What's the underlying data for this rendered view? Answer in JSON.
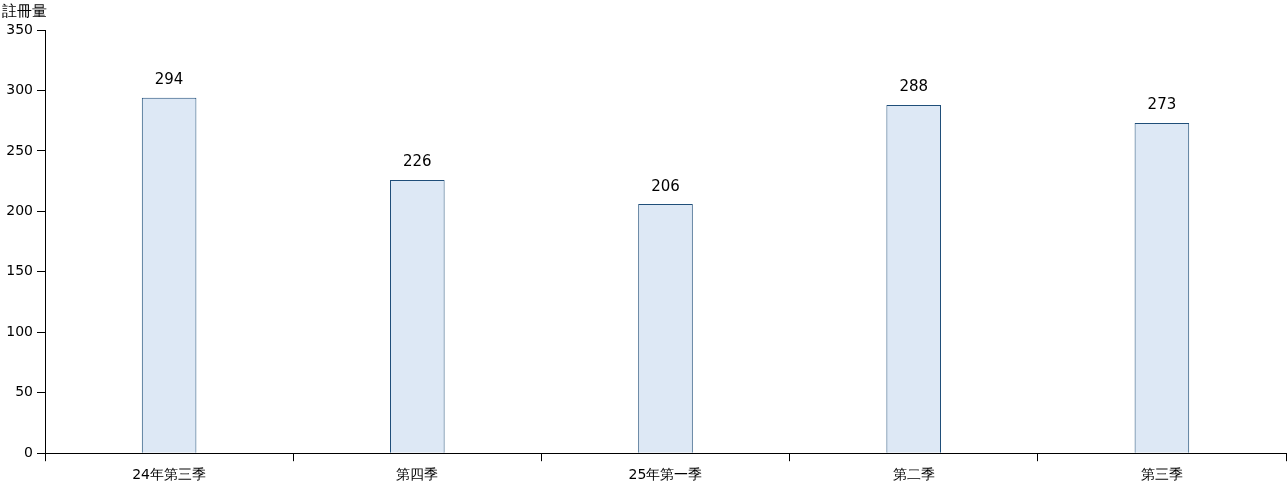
{
  "chart_data": {
    "type": "bar",
    "ylabel": "註冊量",
    "categories": [
      "24年第三季",
      "第四季",
      "25年第一季",
      "第二季",
      "第三季"
    ],
    "values": [
      294,
      226,
      206,
      288,
      273
    ],
    "color": "#dde8f5",
    "ylim": [
      0,
      350
    ],
    "yticks": [
      0,
      50,
      100,
      150,
      200,
      250,
      300,
      350
    ],
    "grid": false,
    "legend": false,
    "data_labels": true
  }
}
